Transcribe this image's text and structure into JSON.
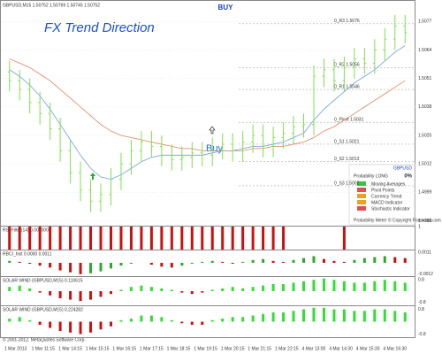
{
  "header": {
    "symbol_info": "GBPUSD,M15 1.50752 1.50769 1.50745 1.50752",
    "signal": "BUY",
    "overlay_title": "FX Trend Direction",
    "arrow_label": "Buy"
  },
  "meter": {
    "symbol": "GBPUSD",
    "probability_label": "Probability LONG",
    "probability": "0%",
    "rows": [
      "Moving Averages",
      "Pivot Points",
      "Currency Trend",
      "MACD Indicator",
      "Stochastic Indicator"
    ],
    "footer": "Probability Meter © Copyright Forex-tsd.com"
  },
  "chart_data": [
    {
      "type": "ohlc",
      "color": "#7ee04e",
      "ylim": [
        1.4985,
        1.5082
      ],
      "yticks": [
        1.5077,
        1.5064,
        1.5051,
        1.5038,
        1.5025,
        1.5012,
        1.4999,
        1.4986
      ],
      "grid": true,
      "open": [
        1.5054,
        1.505,
        1.5046,
        1.504,
        1.5035,
        1.5028,
        1.5018,
        1.5008,
        1.5,
        1.4995,
        1.4998,
        1.5005,
        1.5012,
        1.5018,
        1.5022,
        1.502,
        1.5016,
        1.5014,
        1.5015,
        1.5017,
        1.5016,
        1.5019,
        1.5021,
        1.5018,
        1.5022,
        1.5025,
        1.502,
        1.5024,
        1.5026,
        1.5029,
        1.503,
        1.5052,
        1.5055,
        1.505,
        1.5056,
        1.506,
        1.5058,
        1.5064,
        1.5069,
        1.5075
      ],
      "high": [
        1.5059,
        1.5055,
        1.5051,
        1.5045,
        1.504,
        1.5033,
        1.5023,
        1.5013,
        1.5005,
        1.5003,
        1.501,
        1.5017,
        1.5023,
        1.5027,
        1.5027,
        1.5025,
        1.5021,
        1.502,
        1.5022,
        1.5022,
        1.5024,
        1.5026,
        1.5026,
        1.5027,
        1.503,
        1.503,
        1.5029,
        1.5031,
        1.5034,
        1.5035,
        1.5057,
        1.506,
        1.506,
        1.5061,
        1.5065,
        1.5065,
        1.5069,
        1.5074,
        1.508,
        1.508
      ],
      "low": [
        1.5045,
        1.5041,
        1.5035,
        1.503,
        1.5023,
        1.5013,
        1.5003,
        1.4995,
        1.499,
        1.499,
        1.4993,
        1.5,
        1.5007,
        1.5013,
        1.5015,
        1.5011,
        1.5009,
        1.5009,
        1.501,
        1.5011,
        1.5011,
        1.5014,
        1.5013,
        1.5013,
        1.5017,
        1.5015,
        1.5015,
        1.5019,
        1.5021,
        1.5024,
        1.5025,
        1.5047,
        1.5045,
        1.5045,
        1.5051,
        1.5053,
        1.5053,
        1.5059,
        1.5064,
        1.5067
      ],
      "close": [
        1.505,
        1.5046,
        1.504,
        1.5035,
        1.5028,
        1.5018,
        1.5008,
        1.5,
        1.4995,
        1.4998,
        1.5005,
        1.5012,
        1.5018,
        1.5022,
        1.502,
        1.5016,
        1.5014,
        1.5015,
        1.5017,
        1.5016,
        1.5019,
        1.5021,
        1.5018,
        1.5022,
        1.5025,
        1.502,
        1.5024,
        1.5026,
        1.5029,
        1.503,
        1.5052,
        1.5055,
        1.505,
        1.5056,
        1.506,
        1.5058,
        1.5064,
        1.5069,
        1.5075,
        1.5072
      ],
      "lines": [
        {
          "color": "#6f9be8",
          "values": [
            1.5055,
            1.5052,
            1.5048,
            1.5043,
            1.5037,
            1.503,
            1.5023,
            1.5016,
            1.501,
            1.5006,
            1.5005,
            1.5007,
            1.501,
            1.5013,
            1.5015,
            1.5016,
            1.5016,
            1.5016,
            1.5016,
            1.5016,
            1.5017,
            1.5018,
            1.5018,
            1.5019,
            1.502,
            1.502,
            1.5021,
            1.5022,
            1.5024,
            1.5026,
            1.5032,
            1.5037,
            1.5041,
            1.5045,
            1.5049,
            1.5052,
            1.5055,
            1.5059,
            1.5063,
            1.5066
          ]
        },
        {
          "color": "#e0825a",
          "values": [
            1.506,
            1.5058,
            1.5056,
            1.5053,
            1.505,
            1.5046,
            1.5042,
            1.5038,
            1.5034,
            1.503,
            1.5027,
            1.5025,
            1.5024,
            1.5023,
            1.5022,
            1.5021,
            1.502,
            1.5019,
            1.5019,
            1.5018,
            1.5018,
            1.5018,
            1.5018,
            1.5018,
            1.5019,
            1.5019,
            1.502,
            1.502,
            1.5021,
            1.5022,
            1.5024,
            1.5027,
            1.5029,
            1.5032,
            1.5035,
            1.5038,
            1.5041,
            1.5044,
            1.5047,
            1.505
          ]
        }
      ],
      "levels": [
        {
          "label": "0_R3 1.5076",
          "value": 1.5076
        },
        {
          "label": "0_R2 1.5056",
          "value": 1.5056
        },
        {
          "label": "0_R1 1.5046",
          "value": 1.5046
        },
        {
          "label": "0_Pivot 1.5031",
          "value": 1.5031
        },
        {
          "label": "0_S1 1.5021",
          "value": 1.5021
        },
        {
          "label": "0_S2 1.5013",
          "value": 1.5013
        },
        {
          "label": "0_S3 1.5002",
          "value": 1.5002
        }
      ]
    },
    {
      "type": "bar",
      "title": "RSI Filter(14) 0.000000",
      "color": "#cc1010",
      "ylim": [
        0,
        1
      ],
      "yticks": [
        1
      ],
      "values": [
        1,
        1,
        1,
        1,
        1,
        1,
        1,
        1,
        1,
        1,
        1,
        1,
        1,
        1,
        1,
        1,
        1,
        1,
        1,
        1,
        1,
        1,
        1,
        1,
        1,
        1,
        1,
        1,
        0,
        0,
        0,
        0,
        0,
        1,
        0,
        0,
        0,
        0,
        0,
        0
      ]
    },
    {
      "type": "bar",
      "title": "RBCI_hist 0.0000 0.0011",
      "color": "#2ea82e",
      "color_down": "#cc1010",
      "ylim": [
        -0.0014,
        0.0013
      ],
      "yticks": [
        0.0011,
        -0.0012
      ],
      "values": [
        0.0002,
        0.0001,
        -0.0001,
        -0.0003,
        -0.0005,
        -0.0008,
        -0.001,
        -0.0012,
        -0.0011,
        -0.0009,
        -0.0006,
        -0.0003,
        -0.0001,
        0,
        -0.0002,
        -0.0004,
        -0.0005,
        -0.0003,
        -0.0001,
        0.0001,
        0.0002,
        0.0001,
        -0.0001,
        0.0001,
        0.0003,
        0.0004,
        0.0002,
        0.0001,
        0.0003,
        0.0005,
        0.0007,
        0.0004,
        0.0002,
        0.0001,
        0.0003,
        0.0005,
        0.0006,
        0.0007,
        0.0006,
        0.0005
      ]
    },
    {
      "type": "bar",
      "title": "SOLAR WIND (GBPUSD,M15) 0.110615",
      "color": "#33dd33",
      "color_down": "#cc1010",
      "ylim": [
        -1,
        1
      ],
      "yticks": [
        0.8,
        -0.8
      ],
      "values": [
        0.3,
        0.4,
        0.2,
        -0.1,
        -0.3,
        -0.5,
        -0.6,
        -0.7,
        -0.6,
        -0.4,
        -0.2,
        0.1,
        0.3,
        0.4,
        0.3,
        0.2,
        0.1,
        -0.1,
        -0.2,
        -0.1,
        0.1,
        0.2,
        0.3,
        0.2,
        0.3,
        0.4,
        0.5,
        0.5,
        0.6,
        0.7,
        0.8,
        0.9,
        0.8,
        0.7,
        0.6,
        0.6,
        0.7,
        0.8,
        0.7,
        0.6
      ]
    },
    {
      "type": "bar",
      "title": "SOLAR WIND (GBPUSD,M15) 0.224282",
      "color": "#33dd33",
      "color_down": "#cc1010",
      "ylim": [
        -1,
        1
      ],
      "yticks": [
        0.8,
        -0.8
      ],
      "values": [
        0.2,
        0.3,
        0.1,
        -0.2,
        -0.4,
        -0.6,
        -0.7,
        -0.8,
        -0.7,
        -0.5,
        -0.3,
        0.1,
        0.2,
        0.4,
        0.4,
        0.3,
        0.1,
        -0.1,
        -0.2,
        -0.2,
        0.1,
        0.2,
        0.3,
        0.3,
        0.4,
        0.5,
        0.6,
        0.6,
        0.7,
        0.8,
        0.9,
        0.9,
        0.8,
        0.8,
        0.7,
        0.7,
        0.8,
        0.8,
        0.7,
        0.6
      ]
    }
  ],
  "time_labels": [
    "1 Mar 2013",
    "1 Mar 11:15",
    "1 Mar 14:15",
    "1 Mar 15:15",
    "1 Mar 16:15",
    "1 Mar 17:15",
    "1 Mar 18:15",
    "1 Mar 19:15",
    "1 Mar 20:15",
    "1 Mar 21:15",
    "1 Mar 22:15",
    "4 Mar 13:00",
    "4 Mar 14:30",
    "4 Mar 15:30",
    "4 Mar 16:30"
  ],
  "copyright": "© 2001-2012, MetaQuotes Software Corp."
}
